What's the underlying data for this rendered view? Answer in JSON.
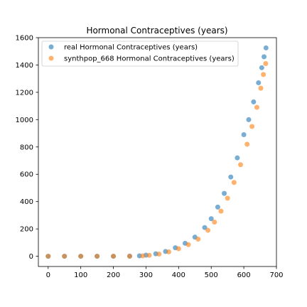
{
  "chart_data": {
    "type": "scatter",
    "title": "Hormonal Contraceptives (years)",
    "xlabel": "",
    "ylabel": "",
    "xlim": [
      -30,
      700
    ],
    "ylim": [
      -75,
      1600
    ],
    "x_ticks": [
      0,
      100,
      200,
      300,
      400,
      500,
      600,
      700
    ],
    "y_ticks": [
      0,
      200,
      400,
      600,
      800,
      1000,
      1200,
      1400,
      1600
    ],
    "grid": false,
    "legend_position": "upper-left",
    "series": [
      {
        "name": "real Hormonal Contraceptives (years)",
        "color": "#1f77b4",
        "x": [
          0,
          50,
          100,
          150,
          200,
          250,
          280,
          300,
          330,
          360,
          390,
          420,
          450,
          480,
          500,
          520,
          540,
          560,
          580,
          600,
          615,
          630,
          645,
          655,
          662,
          668
        ],
        "y": [
          0,
          0,
          0,
          0,
          0,
          1,
          3,
          8,
          18,
          35,
          62,
          95,
          140,
          210,
          275,
          360,
          460,
          580,
          720,
          890,
          1000,
          1130,
          1270,
          1380,
          1460,
          1525
        ]
      },
      {
        "name": "synthpop_668 Hormonal Contraceptives (years)",
        "color": "#ff7f0e",
        "x": [
          0,
          50,
          100,
          150,
          200,
          250,
          290,
          310,
          340,
          370,
          400,
          430,
          460,
          490,
          510,
          530,
          550,
          570,
          590,
          610,
          625,
          640,
          652,
          660,
          667
        ],
        "y": [
          0,
          0,
          0,
          0,
          0,
          0,
          3,
          7,
          16,
          32,
          55,
          85,
          125,
          190,
          250,
          330,
          425,
          540,
          670,
          820,
          950,
          1090,
          1230,
          1330,
          1410
        ]
      }
    ]
  }
}
